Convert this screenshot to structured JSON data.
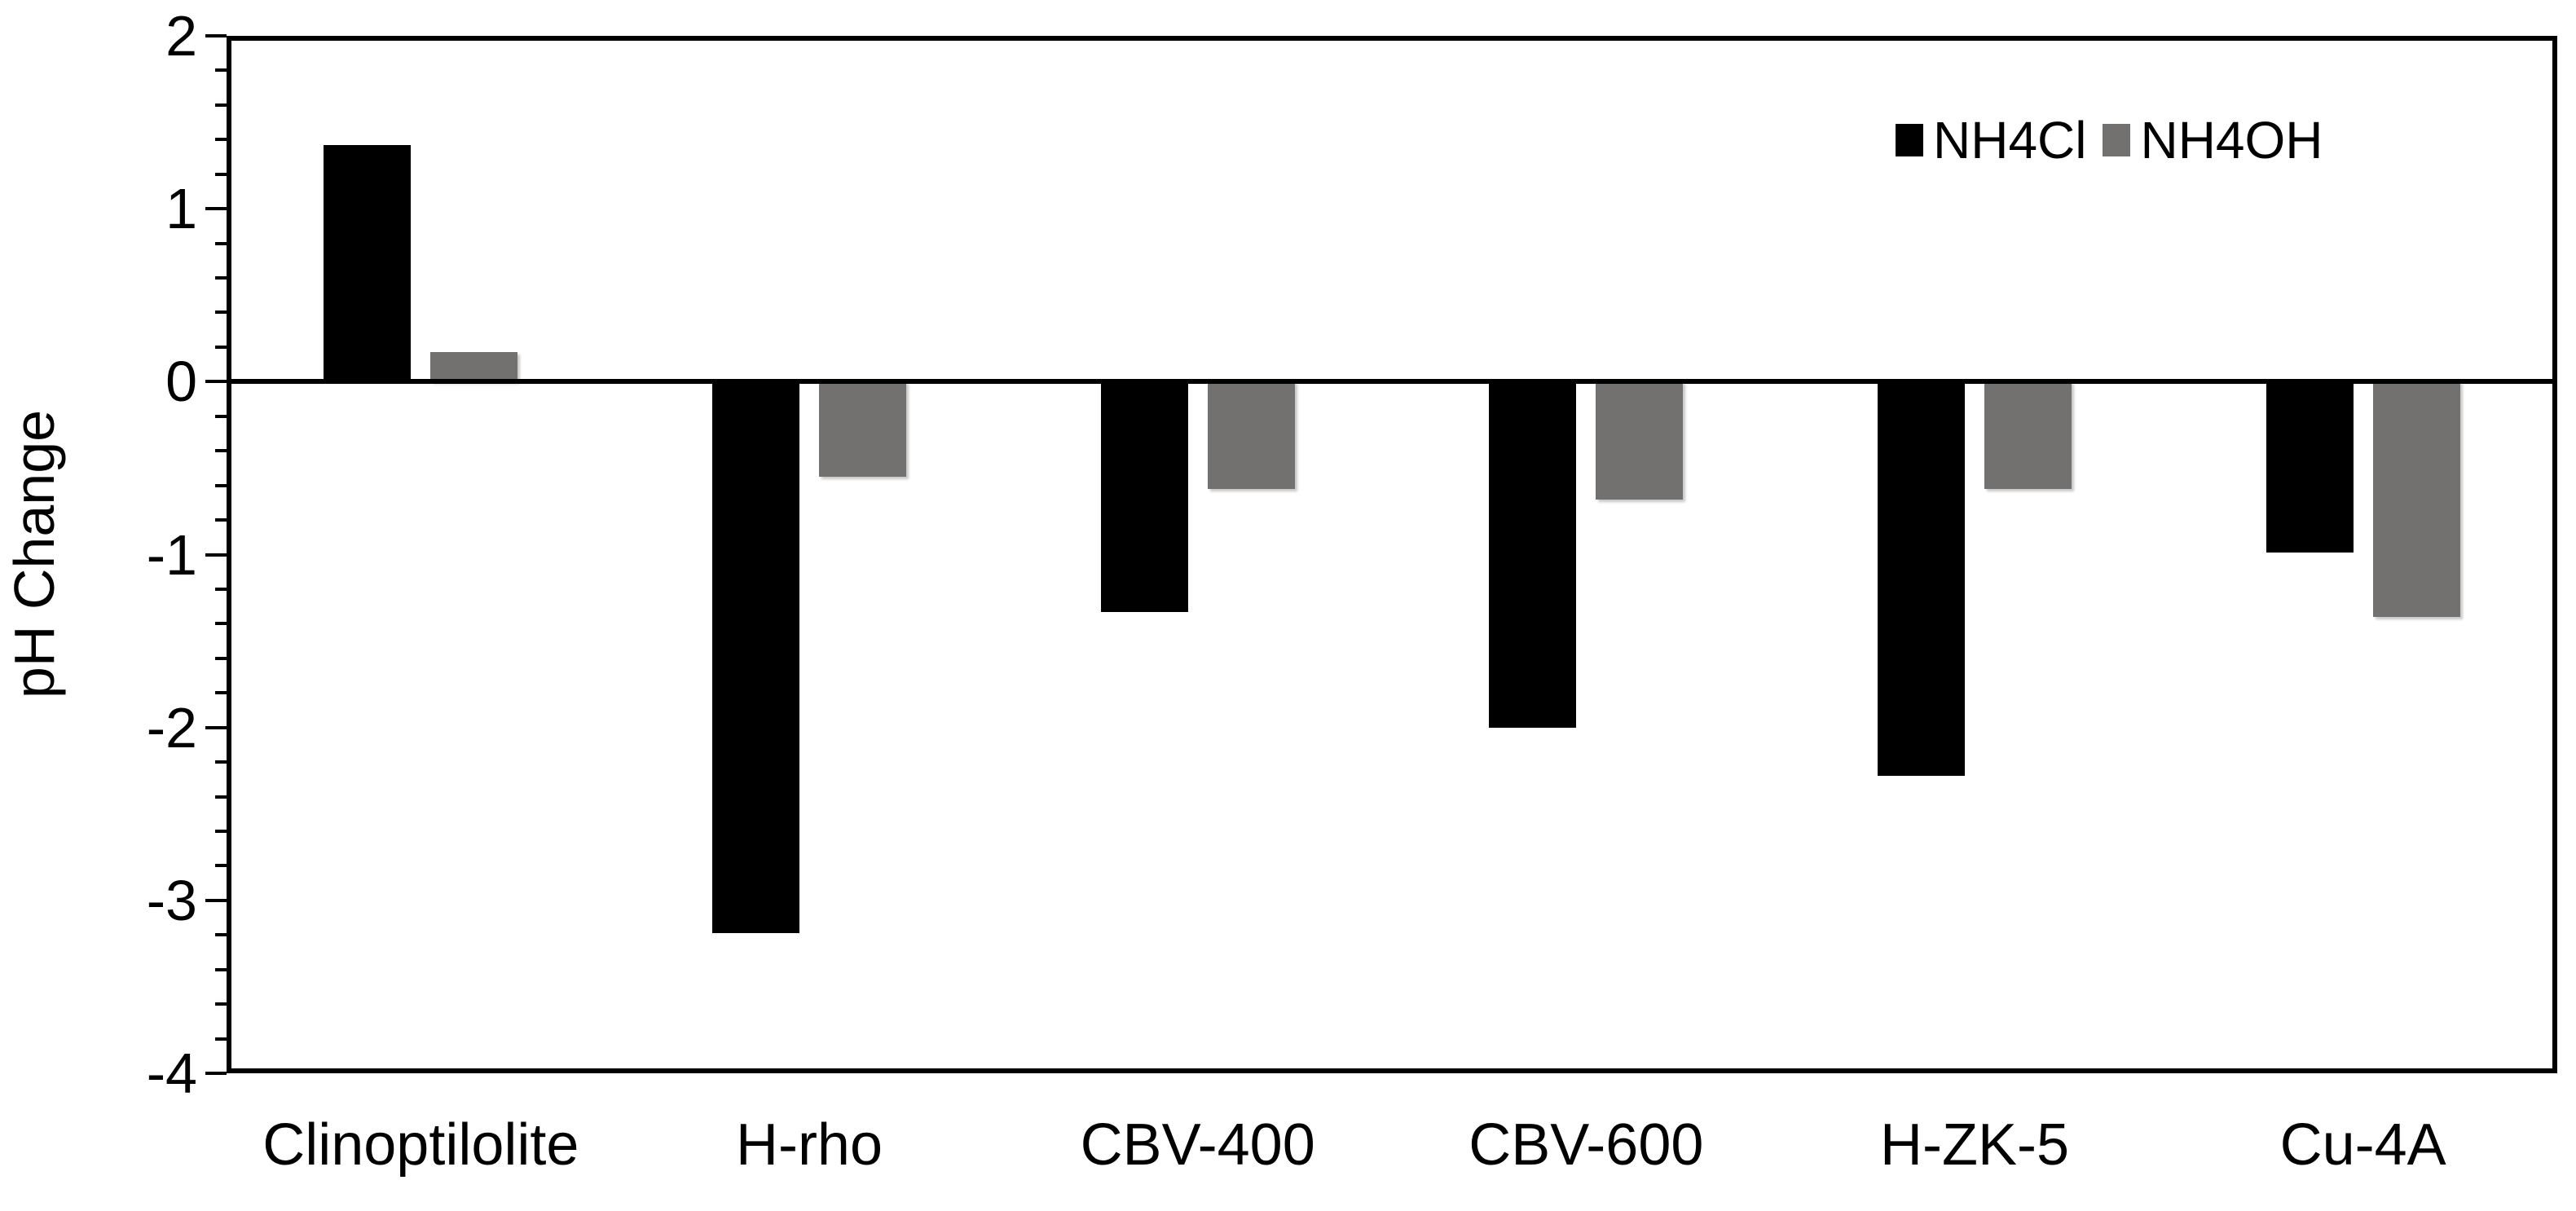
{
  "chart_data": {
    "type": "bar",
    "title": "",
    "ylabel": "pH Change",
    "xlabel": "",
    "categories": [
      "Clinoptilolite",
      "H-rho",
      "CBV-400",
      "CBV-600",
      "H-ZK-5",
      "Cu-4A"
    ],
    "series": [
      {
        "name": "NH4Cl",
        "color": "#000000",
        "values": [
          1.37,
          -3.19,
          -1.33,
          -2.0,
          -2.28,
          -0.99
        ]
      },
      {
        "name": "NH4OH",
        "color": "#737070",
        "values": [
          0.17,
          -0.55,
          -0.62,
          -0.68,
          -0.62,
          -1.36
        ]
      }
    ],
    "ylim": [
      -4,
      2
    ],
    "y_major_step": 1,
    "y_minor_step": 0.2,
    "y_tick_labels": [
      "2",
      "1",
      "0",
      "-1",
      "-2",
      "-3",
      "-4"
    ],
    "legend_position": "top-right",
    "grid": false,
    "background": "#ffffff",
    "axis_color": "#000000"
  }
}
